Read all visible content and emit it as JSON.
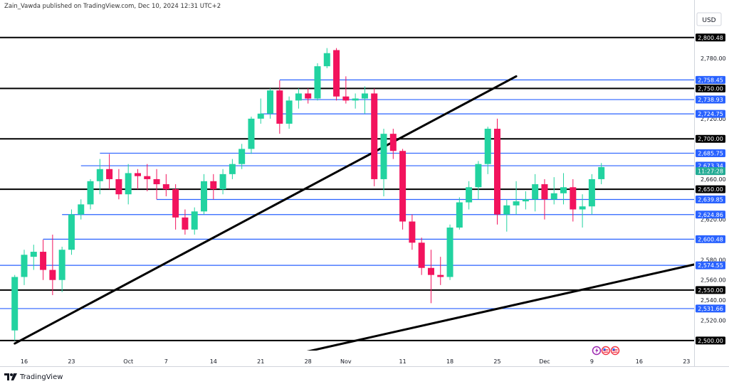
{
  "attribution": "Zain_Vawda published on TradingView.com, Dec 10, 2024 12:31 UTC+2",
  "brand": {
    "name": "TradingView",
    "logo": "tradingview-logo-icon"
  },
  "currency_label": "USD",
  "colors": {
    "up": "#22d3a0",
    "down": "#f2135d",
    "level_line": "#000000",
    "blue_line": "#2962ff",
    "blue_tag": "#2962ff",
    "last_tag": "#22ab94"
  },
  "chart_data": {
    "type": "candlestick",
    "title": "",
    "ylim": [
      2490,
      2825
    ],
    "y_ticks": [
      2520,
      2540,
      2560,
      2580,
      2620,
      2660,
      2720,
      2780
    ],
    "x_ticks": [
      "16",
      "23",
      "Oct",
      "7",
      "14",
      "21",
      "28",
      "Nov",
      "11",
      "18",
      "25",
      "Dec",
      "9",
      "16",
      "23"
    ],
    "x_tick_dates": [
      "2024-09-16",
      "2024-09-23",
      "2024-10-01",
      "2024-10-07",
      "2024-10-14",
      "2024-10-21",
      "2024-10-28",
      "2024-11-01",
      "2024-11-11",
      "2024-11-18",
      "2024-11-25",
      "2024-12-01",
      "2024-12-09",
      "2024-12-16",
      "2024-12-23"
    ],
    "candles": [
      {
        "d": "2024-09-13",
        "o": 2510,
        "h": 2565,
        "l": 2500,
        "c": 2563
      },
      {
        "d": "2024-09-16",
        "o": 2563,
        "h": 2590,
        "l": 2555,
        "c": 2585
      },
      {
        "d": "2024-09-17",
        "o": 2583,
        "h": 2595,
        "l": 2570,
        "c": 2588
      },
      {
        "d": "2024-09-18",
        "o": 2588,
        "h": 2600,
        "l": 2560,
        "c": 2570
      },
      {
        "d": "2024-09-19",
        "o": 2570,
        "h": 2605,
        "l": 2545,
        "c": 2560
      },
      {
        "d": "2024-09-20",
        "o": 2560,
        "h": 2593,
        "l": 2548,
        "c": 2590
      },
      {
        "d": "2024-09-23",
        "o": 2590,
        "h": 2630,
        "l": 2585,
        "c": 2625
      },
      {
        "d": "2024-09-24",
        "o": 2625,
        "h": 2640,
        "l": 2620,
        "c": 2635
      },
      {
        "d": "2024-09-25",
        "o": 2635,
        "h": 2660,
        "l": 2630,
        "c": 2658
      },
      {
        "d": "2024-09-26",
        "o": 2658,
        "h": 2680,
        "l": 2645,
        "c": 2670
      },
      {
        "d": "2024-09-27",
        "o": 2670,
        "h": 2685,
        "l": 2650,
        "c": 2660
      },
      {
        "d": "2024-09-30",
        "o": 2660,
        "h": 2670,
        "l": 2640,
        "c": 2645
      },
      {
        "d": "2024-10-01",
        "o": 2645,
        "h": 2675,
        "l": 2635,
        "c": 2666
      },
      {
        "d": "2024-10-02",
        "o": 2666,
        "h": 2670,
        "l": 2650,
        "c": 2663
      },
      {
        "d": "2024-10-03",
        "o": 2663,
        "h": 2675,
        "l": 2648,
        "c": 2660
      },
      {
        "d": "2024-10-04",
        "o": 2660,
        "h": 2670,
        "l": 2640,
        "c": 2655
      },
      {
        "d": "2024-10-07",
        "o": 2655,
        "h": 2665,
        "l": 2643,
        "c": 2650
      },
      {
        "d": "2024-10-08",
        "o": 2650,
        "h": 2655,
        "l": 2610,
        "c": 2622
      },
      {
        "d": "2024-10-09",
        "o": 2622,
        "h": 2630,
        "l": 2605,
        "c": 2610
      },
      {
        "d": "2024-10-10",
        "o": 2610,
        "h": 2632,
        "l": 2605,
        "c": 2628
      },
      {
        "d": "2024-10-11",
        "o": 2628,
        "h": 2665,
        "l": 2625,
        "c": 2658
      },
      {
        "d": "2024-10-14",
        "o": 2658,
        "h": 2665,
        "l": 2640,
        "c": 2650
      },
      {
        "d": "2024-10-15",
        "o": 2650,
        "h": 2670,
        "l": 2645,
        "c": 2665
      },
      {
        "d": "2024-10-16",
        "o": 2665,
        "h": 2680,
        "l": 2660,
        "c": 2675
      },
      {
        "d": "2024-10-17",
        "o": 2675,
        "h": 2695,
        "l": 2670,
        "c": 2690
      },
      {
        "d": "2024-10-18",
        "o": 2690,
        "h": 2722,
        "l": 2685,
        "c": 2720
      },
      {
        "d": "2024-10-21",
        "o": 2720,
        "h": 2740,
        "l": 2715,
        "c": 2725
      },
      {
        "d": "2024-10-22",
        "o": 2725,
        "h": 2750,
        "l": 2720,
        "c": 2748
      },
      {
        "d": "2024-10-23",
        "o": 2748,
        "h": 2758,
        "l": 2705,
        "c": 2715
      },
      {
        "d": "2024-10-24",
        "o": 2715,
        "h": 2742,
        "l": 2710,
        "c": 2738
      },
      {
        "d": "2024-10-25",
        "o": 2738,
        "h": 2750,
        "l": 2730,
        "c": 2745
      },
      {
        "d": "2024-10-28",
        "o": 2745,
        "h": 2750,
        "l": 2735,
        "c": 2740
      },
      {
        "d": "2024-10-29",
        "o": 2740,
        "h": 2775,
        "l": 2738,
        "c": 2772
      },
      {
        "d": "2024-10-30",
        "o": 2772,
        "h": 2790,
        "l": 2770,
        "c": 2785
      },
      {
        "d": "2024-10-31",
        "o": 2788,
        "h": 2790,
        "l": 2738,
        "c": 2742
      },
      {
        "d": "2024-11-01",
        "o": 2742,
        "h": 2762,
        "l": 2735,
        "c": 2738
      },
      {
        "d": "2024-11-04",
        "o": 2738,
        "h": 2745,
        "l": 2730,
        "c": 2740
      },
      {
        "d": "2024-11-05",
        "o": 2740,
        "h": 2752,
        "l": 2725,
        "c": 2745
      },
      {
        "d": "2024-11-06",
        "o": 2745,
        "h": 2750,
        "l": 2653,
        "c": 2660
      },
      {
        "d": "2024-11-07",
        "o": 2660,
        "h": 2710,
        "l": 2643,
        "c": 2705
      },
      {
        "d": "2024-11-08",
        "o": 2705,
        "h": 2710,
        "l": 2680,
        "c": 2688
      },
      {
        "d": "2024-11-11",
        "o": 2688,
        "h": 2690,
        "l": 2610,
        "c": 2618
      },
      {
        "d": "2024-11-12",
        "o": 2618,
        "h": 2625,
        "l": 2590,
        "c": 2597
      },
      {
        "d": "2024-11-13",
        "o": 2597,
        "h": 2602,
        "l": 2565,
        "c": 2572
      },
      {
        "d": "2024-11-14",
        "o": 2572,
        "h": 2590,
        "l": 2537,
        "c": 2565
      },
      {
        "d": "2024-11-15",
        "o": 2565,
        "h": 2583,
        "l": 2555,
        "c": 2563
      },
      {
        "d": "2024-11-18",
        "o": 2563,
        "h": 2615,
        "l": 2560,
        "c": 2612
      },
      {
        "d": "2024-11-19",
        "o": 2612,
        "h": 2642,
        "l": 2610,
        "c": 2637
      },
      {
        "d": "2024-11-20",
        "o": 2637,
        "h": 2658,
        "l": 2630,
        "c": 2652
      },
      {
        "d": "2024-11-21",
        "o": 2652,
        "h": 2678,
        "l": 2640,
        "c": 2675
      },
      {
        "d": "2024-11-22",
        "o": 2675,
        "h": 2712,
        "l": 2665,
        "c": 2710
      },
      {
        "d": "2024-11-25",
        "o": 2710,
        "h": 2720,
        "l": 2615,
        "c": 2625
      },
      {
        "d": "2024-11-26",
        "o": 2625,
        "h": 2640,
        "l": 2608,
        "c": 2634
      },
      {
        "d": "2024-11-27",
        "o": 2634,
        "h": 2658,
        "l": 2625,
        "c": 2638
      },
      {
        "d": "2024-11-28",
        "o": 2638,
        "h": 2648,
        "l": 2630,
        "c": 2640
      },
      {
        "d": "2024-11-29",
        "o": 2640,
        "h": 2665,
        "l": 2628,
        "c": 2655
      },
      {
        "d": "2024-12-02",
        "o": 2655,
        "h": 2660,
        "l": 2620,
        "c": 2640
      },
      {
        "d": "2024-12-03",
        "o": 2640,
        "h": 2662,
        "l": 2635,
        "c": 2646
      },
      {
        "d": "2024-12-04",
        "o": 2646,
        "h": 2666,
        "l": 2635,
        "c": 2652
      },
      {
        "d": "2024-12-05",
        "o": 2652,
        "h": 2660,
        "l": 2618,
        "c": 2630
      },
      {
        "d": "2024-12-06",
        "o": 2630,
        "h": 2645,
        "l": 2612,
        "c": 2633
      },
      {
        "d": "2024-12-09",
        "o": 2633,
        "h": 2665,
        "l": 2625,
        "c": 2660
      },
      {
        "d": "2024-12-10",
        "o": 2660,
        "h": 2676,
        "l": 2655,
        "c": 2672
      }
    ],
    "horizontal_lines": [
      {
        "price": 2800.48,
        "label": "2,800.48",
        "style": "black"
      },
      {
        "price": 2758.45,
        "label": "2,758.45",
        "style": "blue",
        "from": "2024-10-23"
      },
      {
        "price": 2750.0,
        "label": "2,750.00",
        "style": "black"
      },
      {
        "price": 2738.93,
        "label": "2,738.93",
        "style": "blue",
        "from": "2024-10-25"
      },
      {
        "price": 2724.75,
        "label": "2,724.75",
        "style": "blue",
        "from": "2024-10-21"
      },
      {
        "price": 2700.0,
        "label": "2,700.00",
        "style": "black"
      },
      {
        "price": 2685.75,
        "label": "2,685.75",
        "style": "blue",
        "from": "2024-09-26"
      },
      {
        "price": 2673.34,
        "label": "2,673.34",
        "style": "blue",
        "from": "2024-09-24"
      },
      {
        "price": 2650.0,
        "label": "2,650.00",
        "style": "black"
      },
      {
        "price": 2639.85,
        "label": "2,639.85",
        "style": "blue",
        "from": "2024-10-04"
      },
      {
        "price": 2624.86,
        "label": "2,624.86",
        "style": "blue",
        "from": "2024-09-20"
      },
      {
        "price": 2600.48,
        "label": "2,600.48",
        "style": "blue",
        "from": "2024-09-18"
      },
      {
        "price": 2574.55,
        "label": "2,574.55",
        "style": "blue"
      },
      {
        "price": 2550.0,
        "label": "2,550.00",
        "style": "black"
      },
      {
        "price": 2531.66,
        "label": "2,531.66",
        "style": "blue"
      },
      {
        "price": 2500.0,
        "label": "2,500.00",
        "style": "black"
      }
    ],
    "trend_lines": [
      {
        "from": {
          "d": "2024-09-13",
          "p": 2497
        },
        "to": {
          "d": "2024-11-27",
          "p": 2762
        }
      },
      {
        "from": {
          "d": "2024-10-24",
          "p": 2485
        },
        "to": {
          "d": "2024-12-26",
          "p": 2580
        }
      }
    ],
    "last_price": {
      "label": "11:27:28",
      "price": 2668,
      "style": "green"
    },
    "event_icons": [
      "lightning-icon",
      "us-flag-icon",
      "us-flag-icon"
    ]
  }
}
